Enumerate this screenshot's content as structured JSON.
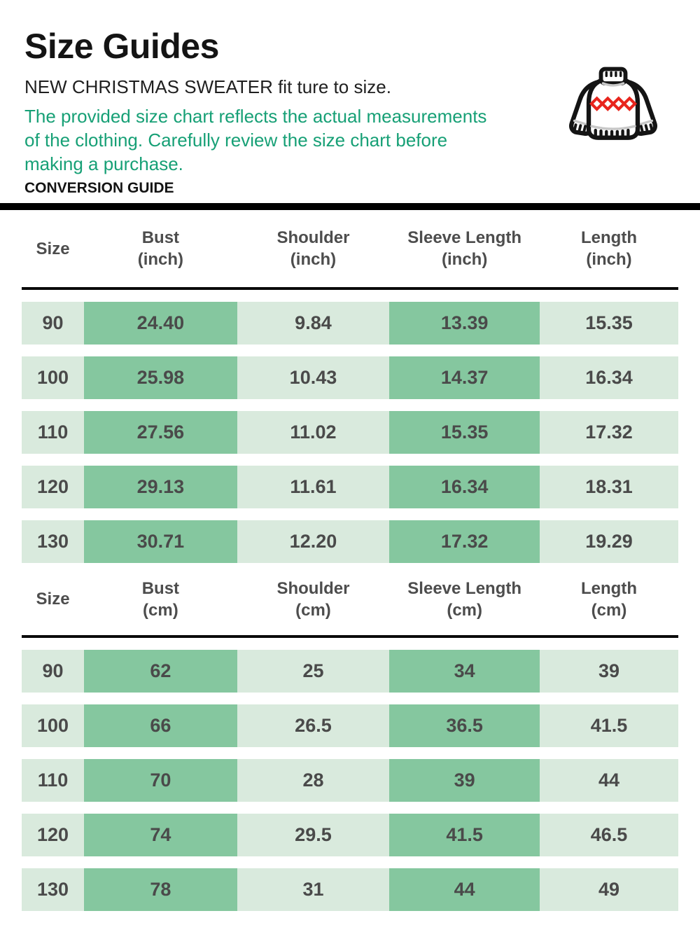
{
  "header": {
    "title": "Size Guides",
    "subtitle": "NEW CHRISTMAS SWEATER fit ture to size.",
    "note": "The provided size chart reflects the actual measurements of the clothing. Carefully review the size chart before making a purchase.",
    "section_label": "CONVERSION GUIDE"
  },
  "icon": {
    "name": "christmas-sweater-icon",
    "outline_color": "#141414",
    "diamond_color": "#e8251d",
    "shade_color": "#c8c8c8"
  },
  "colors": {
    "note_green": "#17a076",
    "cell_light": "#d9eadd",
    "cell_dark": "#85c79f",
    "cell_text": "#4a4a4a",
    "header_text": "#4d4d4d"
  },
  "tables": [
    {
      "id": "inch",
      "columns": [
        {
          "label": "Size",
          "unit": ""
        },
        {
          "label": "Bust",
          "unit": "(inch)"
        },
        {
          "label": "Shoulder",
          "unit": "(inch)"
        },
        {
          "label": "Sleeve Length",
          "unit": "(inch)"
        },
        {
          "label": "Length",
          "unit": "(inch)"
        }
      ],
      "highlight_columns": [
        1,
        3
      ],
      "rows": [
        [
          "90",
          "24.40",
          "9.84",
          "13.39",
          "15.35"
        ],
        [
          "100",
          "25.98",
          "10.43",
          "14.37",
          "16.34"
        ],
        [
          "110",
          "27.56",
          "11.02",
          "15.35",
          "17.32"
        ],
        [
          "120",
          "29.13",
          "11.61",
          "16.34",
          "18.31"
        ],
        [
          "130",
          "30.71",
          "12.20",
          "17.32",
          "19.29"
        ]
      ]
    },
    {
      "id": "cm",
      "columns": [
        {
          "label": "Size",
          "unit": ""
        },
        {
          "label": "Bust",
          "unit": "(cm)"
        },
        {
          "label": "Shoulder",
          "unit": "(cm)"
        },
        {
          "label": "Sleeve Length",
          "unit": "(cm)"
        },
        {
          "label": "Length",
          "unit": "(cm)"
        }
      ],
      "highlight_columns": [
        1,
        3
      ],
      "rows": [
        [
          "90",
          "62",
          "25",
          "34",
          "39"
        ],
        [
          "100",
          "66",
          "26.5",
          "36.5",
          "41.5"
        ],
        [
          "110",
          "70",
          "28",
          "39",
          "44"
        ],
        [
          "120",
          "74",
          "29.5",
          "41.5",
          "46.5"
        ],
        [
          "130",
          "78",
          "31",
          "44",
          "49"
        ]
      ]
    }
  ]
}
